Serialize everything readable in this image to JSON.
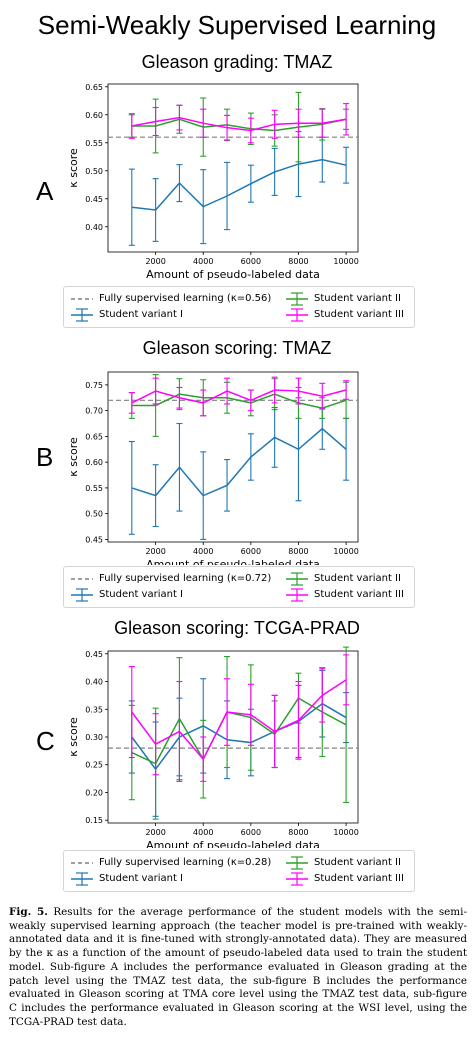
{
  "page_title": "Semi-Weakly Supervised Learning",
  "caption": {
    "label": "Fig. 5.",
    "text": "Results for the average performance of the student models with the semi-weakly supervised learning approach (the teacher model is pre-trained with weakly-annotated data and it is fine-tuned with strongly-annotated data). They are measured by the κ as a function of the amount of pseudo-labeled data used to train the student model. Sub-figure A includes the performance evaluated in Gleason grading at the patch level using the TMAZ test data, the sub-figure B includes the performance evaluated in Gleason scoring at TMA core level using the TMAZ test data, sub-figure C includes the performance evaluated in Gleason scoring at the WSI level, using the TCGA-PRAD test data."
  },
  "colors": {
    "variant_I": "#1f77b4",
    "variant_II": "#2ca02c",
    "variant_III": "#ff00ff",
    "baseline": "#808080"
  },
  "chart_data": [
    {
      "letter": "A",
      "type": "line",
      "title": "Gleason grading: TMAZ",
      "xlabel": "Amount of pseudo-labeled data",
      "ylabel": "κ score",
      "x": [
        1000,
        2000,
        3000,
        4000,
        5000,
        6000,
        7000,
        8000,
        9000,
        10000
      ],
      "xlim": [
        0,
        10500
      ],
      "ylim": [
        0.355,
        0.655
      ],
      "xticks": [
        "2000",
        "4000",
        "6000",
        "8000",
        "10000"
      ],
      "yticks": [
        "0.40",
        "0.45",
        "0.50",
        "0.55",
        "0.60",
        "0.65"
      ],
      "baseline": {
        "label": "Fully supervised learning (κ=0.56)",
        "value": 0.56
      },
      "series": [
        {
          "name": "Student variant I",
          "values": [
            0.435,
            0.43,
            0.478,
            0.436,
            0.455,
            0.477,
            0.498,
            0.512,
            0.52,
            0.51
          ],
          "err": [
            0.068,
            0.056,
            0.033,
            0.066,
            0.06,
            0.033,
            0.042,
            0.058,
            0.04,
            0.032
          ]
        },
        {
          "name": "Student variant II",
          "values": [
            0.58,
            0.58,
            0.592,
            0.578,
            0.582,
            0.575,
            0.572,
            0.578,
            0.583,
            0.592
          ],
          "err": [
            0.02,
            0.048,
            0.025,
            0.052,
            0.028,
            0.028,
            0.028,
            0.062,
            0.028,
            0.018
          ]
        },
        {
          "name": "Student variant III",
          "values": [
            0.58,
            0.588,
            0.595,
            0.585,
            0.577,
            0.572,
            0.583,
            0.585,
            0.585,
            0.592
          ],
          "err": [
            0.022,
            0.025,
            0.022,
            0.025,
            0.022,
            0.022,
            0.025,
            0.025,
            0.025,
            0.028
          ]
        }
      ],
      "legend_position": "below"
    },
    {
      "letter": "B",
      "type": "line",
      "title": "Gleason scoring: TMAZ",
      "xlabel": "Amount of pseudo-labeled data",
      "ylabel": "κ score",
      "x": [
        1000,
        2000,
        3000,
        4000,
        5000,
        6000,
        7000,
        8000,
        9000,
        10000
      ],
      "xlim": [
        0,
        10500
      ],
      "ylim": [
        0.445,
        0.775
      ],
      "xticks": [
        "2000",
        "4000",
        "6000",
        "8000",
        "10000"
      ],
      "yticks": [
        "0.45",
        "0.50",
        "0.55",
        "0.60",
        "0.65",
        "0.70",
        "0.75"
      ],
      "baseline": {
        "label": "Fully supervised learning (κ=0.72)",
        "value": 0.72
      },
      "series": [
        {
          "name": "Student variant I",
          "values": [
            0.55,
            0.535,
            0.59,
            0.535,
            0.555,
            0.61,
            0.648,
            0.625,
            0.665,
            0.625
          ],
          "err": [
            0.09,
            0.06,
            0.085,
            0.085,
            0.05,
            0.045,
            0.058,
            0.1,
            0.04,
            0.06
          ]
        },
        {
          "name": "Student variant II",
          "values": [
            0.71,
            0.71,
            0.732,
            0.725,
            0.725,
            0.715,
            0.732,
            0.715,
            0.705,
            0.72
          ],
          "err": [
            0.025,
            0.06,
            0.03,
            0.035,
            0.03,
            0.025,
            0.03,
            0.03,
            0.02,
            0.035
          ]
        },
        {
          "name": "Student variant III",
          "values": [
            0.715,
            0.738,
            0.725,
            0.715,
            0.738,
            0.72,
            0.74,
            0.738,
            0.728,
            0.74
          ],
          "err": [
            0.02,
            0.025,
            0.02,
            0.025,
            0.025,
            0.02,
            0.025,
            0.025,
            0.025,
            0.018
          ]
        }
      ],
      "legend_position": "below"
    },
    {
      "letter": "C",
      "type": "line",
      "title": "Gleason scoring: TCGA-PRAD",
      "xlabel": "Amount of pseudo-labeled data",
      "ylabel": "κ score",
      "x": [
        1000,
        2000,
        3000,
        4000,
        5000,
        6000,
        7000,
        8000,
        9000,
        10000
      ],
      "xlim": [
        0,
        10500
      ],
      "ylim": [
        0.145,
        0.455
      ],
      "xticks": [
        "2000",
        "4000",
        "6000",
        "8000",
        "10000"
      ],
      "yticks": [
        "0.15",
        "0.20",
        "0.25",
        "0.30",
        "0.35",
        "0.40",
        "0.45"
      ],
      "baseline": {
        "label": "Fully supervised learning (κ=0.28)",
        "value": 0.28
      },
      "series": [
        {
          "name": "Student variant I",
          "values": [
            0.3,
            0.242,
            0.3,
            0.32,
            0.295,
            0.29,
            0.31,
            0.328,
            0.36,
            0.335
          ],
          "err": [
            0.065,
            0.085,
            0.07,
            0.085,
            0.07,
            0.06,
            0.065,
            0.065,
            0.06,
            0.045
          ]
        },
        {
          "name": "Student variant II",
          "values": [
            0.272,
            0.252,
            0.333,
            0.26,
            0.345,
            0.335,
            0.305,
            0.37,
            0.345,
            0.322
          ],
          "err": [
            0.085,
            0.1,
            0.11,
            0.07,
            0.1,
            0.095,
            0.06,
            0.045,
            0.08,
            0.14
          ]
        },
        {
          "name": "Student variant III",
          "values": [
            0.345,
            0.287,
            0.31,
            0.26,
            0.345,
            0.34,
            0.31,
            0.33,
            0.375,
            0.403
          ],
          "err": [
            0.082,
            0.055,
            0.09,
            0.04,
            0.06,
            0.055,
            0.065,
            0.07,
            0.048,
            0.045
          ]
        }
      ],
      "legend_position": "below"
    }
  ]
}
